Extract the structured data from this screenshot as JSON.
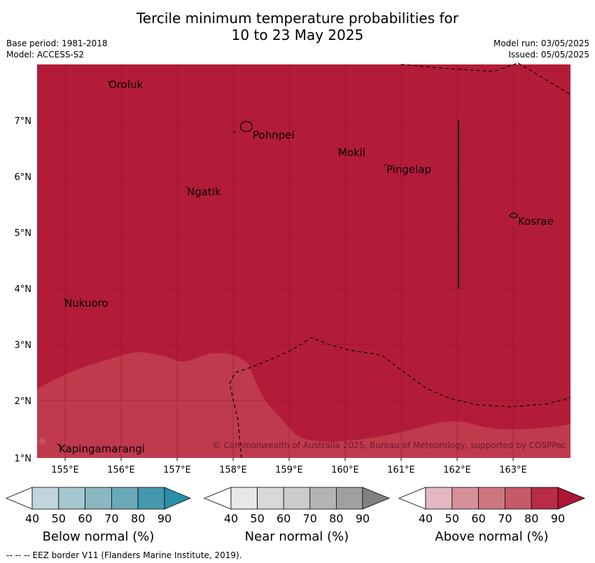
{
  "title": {
    "line1": "Tercile minimum temperature probabilities for",
    "line2": "10 to 23 May 2025"
  },
  "meta": {
    "base_period": "Base period: 1981-2018",
    "model": "Model: ACCESS-S2",
    "model_run": "Model run: 03/05/2025",
    "issued": "Issued: 05/05/2025"
  },
  "map": {
    "lon_range": [
      154.5,
      164.0
    ],
    "lat_range": [
      1.0,
      8.0
    ],
    "lon_ticks": [
      "155°E",
      "156°E",
      "157°E",
      "158°E",
      "159°E",
      "160°E",
      "161°E",
      "162°E",
      "163°E"
    ],
    "lat_ticks": [
      "1°N",
      "2°N",
      "3°N",
      "4°N",
      "5°N",
      "6°N",
      "7°N"
    ],
    "background_category": "Above normal 80-90%",
    "background_color": "#b31c39",
    "lower_region_category": "Above normal 70-80%",
    "lower_region_color": "#bf3a4d",
    "islands": [
      {
        "name": "Oroluk",
        "lon": 155.3,
        "lat": 7.6
      },
      {
        "name": "Pohnpei",
        "lon": 158.2,
        "lat": 6.9
      },
      {
        "name": "Mokil",
        "lon": 159.8,
        "lat": 6.7
      },
      {
        "name": "Pingelap",
        "lon": 160.7,
        "lat": 6.2
      },
      {
        "name": "Ngatik",
        "lon": 157.1,
        "lat": 5.8
      },
      {
        "name": "Kosrae",
        "lon": 163.0,
        "lat": 5.3
      },
      {
        "name": "Nukuoro",
        "lon": 154.8,
        "lat": 3.8
      },
      {
        "name": "Kapingamarangi",
        "lon": 154.8,
        "lat": 1.1
      }
    ],
    "copyright": "© Commonwealth of Australia 2025, Bureau of Meteorology, supported by COSPPac"
  },
  "legends": [
    {
      "label": "Below normal (%)",
      "ticks": [
        "40",
        "50",
        "60",
        "70",
        "80",
        "90"
      ],
      "colors": [
        "#ffffff",
        "#c0d5dc",
        "#a5c8cf",
        "#8bb7c1",
        "#6aa9b8",
        "#4599ad",
        "#2a8fa8"
      ]
    },
    {
      "label": "Near normal (%)",
      "ticks": [
        "40",
        "50",
        "60",
        "70",
        "80",
        "90"
      ],
      "colors": [
        "#ffffff",
        "#e8e8e8",
        "#d9d9d9",
        "#cccccc",
        "#b4b4b4",
        "#a0a0a0",
        "#808080"
      ]
    },
    {
      "label": "Above normal (%)",
      "ticks": [
        "40",
        "50",
        "60",
        "70",
        "80",
        "90"
      ],
      "colors": [
        "#ffffff",
        "#e3b8c1",
        "#d69098",
        "#cc7780",
        "#c55a69",
        "#b82c46",
        "#ad1535"
      ]
    }
  ],
  "footnote": "--  --  -- EEZ border V11 (Flanders Marine Institute, 2019)."
}
